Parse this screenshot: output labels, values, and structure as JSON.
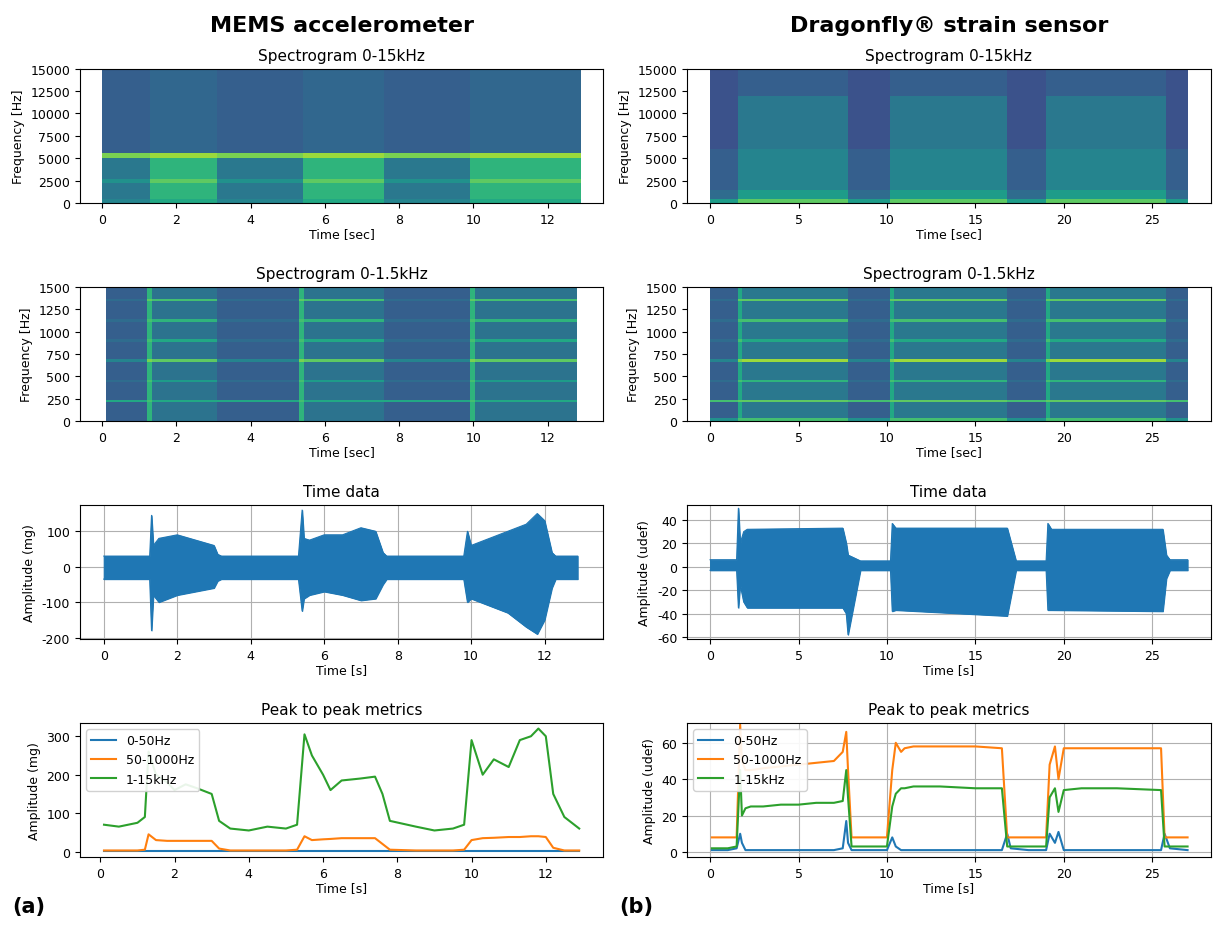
{
  "headers": [
    "MEMS accelerometer",
    "Dragonfly® strain sensor"
  ],
  "panel_labels": [
    "(a)",
    "(b)"
  ],
  "chart_data": [
    {
      "type": "heatmap",
      "title": "Spectrogram 0-15kHz",
      "x_label": "Time [sec]",
      "y_label": "Frequency [Hz]",
      "x_edges": [
        0,
        1.3,
        3.1,
        5.4,
        7.6,
        9.9,
        12.9
      ],
      "y_edges": [
        0,
        500,
        2300,
        2700,
        5000,
        5600,
        15000
      ],
      "cells": [
        [
          0.45,
          0.6,
          0.45,
          0.6,
          0.45,
          0.6
        ],
        [
          0.4,
          0.65,
          0.4,
          0.65,
          0.4,
          0.65
        ],
        [
          0.5,
          0.75,
          0.5,
          0.75,
          0.5,
          0.75
        ],
        [
          0.4,
          0.65,
          0.4,
          0.65,
          0.4,
          0.65
        ],
        [
          0.8,
          0.85,
          0.8,
          0.85,
          0.8,
          0.85
        ],
        [
          0.3,
          0.33,
          0.3,
          0.33,
          0.3,
          0.33
        ]
      ],
      "cell_range": [
        0,
        1
      ],
      "xlim": [
        -0.6,
        13.5
      ],
      "ylim": [
        0,
        15000
      ],
      "xticks": [
        0,
        2,
        4,
        6,
        8,
        10,
        12
      ],
      "yticks": [
        0,
        2500,
        5000,
        7500,
        10000,
        12500,
        15000
      ]
    },
    {
      "type": "heatmap",
      "title": "Spectrogram 0-15kHz",
      "x_label": "Time [sec]",
      "y_label": "Frequency [Hz]",
      "x_edges": [
        0,
        1.6,
        7.8,
        10.2,
        16.8,
        19.0,
        25.8,
        27.0
      ],
      "y_edges": [
        0,
        500,
        1500,
        6000,
        12000,
        15000
      ],
      "cells": [
        [
          0.55,
          0.75,
          0.55,
          0.75,
          0.55,
          0.75,
          0.55
        ],
        [
          0.35,
          0.55,
          0.35,
          0.55,
          0.35,
          0.55,
          0.35
        ],
        [
          0.3,
          0.45,
          0.3,
          0.45,
          0.3,
          0.45,
          0.3
        ],
        [
          0.25,
          0.4,
          0.25,
          0.4,
          0.25,
          0.4,
          0.25
        ],
        [
          0.25,
          0.3,
          0.25,
          0.3,
          0.25,
          0.3,
          0.25
        ]
      ],
      "cell_range": [
        0,
        1
      ],
      "xlim": [
        -1.3,
        28.3
      ],
      "ylim": [
        0,
        15000
      ],
      "xticks": [
        0,
        5,
        10,
        15,
        20,
        25
      ],
      "yticks": [
        0,
        2500,
        5000,
        7500,
        10000,
        12500,
        15000
      ]
    },
    {
      "type": "heatmap",
      "title": "Spectrogram 0-1.5kHz",
      "x_label": "Time [sec]",
      "y_label": "Frequency [Hz]",
      "x_edges": [
        0.1,
        1.2,
        1.35,
        3.1,
        5.3,
        5.45,
        7.6,
        9.9,
        10.05,
        12.8
      ],
      "y_edges": [
        0,
        210,
        240,
        435,
        465,
        660,
        690,
        885,
        915,
        1110,
        1140,
        1335,
        1365,
        1500
      ],
      "cells": [
        [
          0.3,
          0.65,
          0.38,
          0.3,
          0.65,
          0.38,
          0.3,
          0.65,
          0.38
        ],
        [
          0.6,
          0.7,
          0.6,
          0.6,
          0.7,
          0.6,
          0.6,
          0.7,
          0.6
        ],
        [
          0.3,
          0.65,
          0.38,
          0.3,
          0.65,
          0.38,
          0.3,
          0.65,
          0.38
        ],
        [
          0.35,
          0.7,
          0.55,
          0.35,
          0.7,
          0.55,
          0.35,
          0.7,
          0.55
        ],
        [
          0.3,
          0.65,
          0.38,
          0.3,
          0.65,
          0.38,
          0.3,
          0.65,
          0.38
        ],
        [
          0.45,
          0.8,
          0.75,
          0.45,
          0.8,
          0.75,
          0.45,
          0.8,
          0.75
        ],
        [
          0.3,
          0.65,
          0.38,
          0.3,
          0.65,
          0.38,
          0.3,
          0.65,
          0.38
        ],
        [
          0.35,
          0.7,
          0.6,
          0.35,
          0.7,
          0.6,
          0.35,
          0.7,
          0.6
        ],
        [
          0.3,
          0.65,
          0.38,
          0.3,
          0.65,
          0.38,
          0.3,
          0.65,
          0.38
        ],
        [
          0.35,
          0.7,
          0.65,
          0.35,
          0.7,
          0.65,
          0.35,
          0.7,
          0.65
        ],
        [
          0.3,
          0.65,
          0.38,
          0.3,
          0.65,
          0.38,
          0.3,
          0.65,
          0.38
        ],
        [
          0.35,
          0.75,
          0.7,
          0.35,
          0.75,
          0.7,
          0.35,
          0.75,
          0.7
        ],
        [
          0.3,
          0.65,
          0.38,
          0.3,
          0.65,
          0.38,
          0.3,
          0.65,
          0.38
        ]
      ],
      "cell_range": [
        0,
        1
      ],
      "xlim": [
        -0.6,
        13.5
      ],
      "ylim": [
        0,
        1500
      ],
      "xticks": [
        0,
        2,
        4,
        6,
        8,
        10,
        12
      ],
      "yticks": [
        0,
        250,
        500,
        750,
        1000,
        1250,
        1500
      ]
    },
    {
      "type": "heatmap",
      "title": "Spectrogram 0-1.5kHz",
      "x_label": "Time [sec]",
      "y_label": "Frequency [Hz]",
      "x_edges": [
        0,
        1.6,
        1.8,
        7.8,
        10.2,
        10.4,
        16.8,
        19.0,
        19.2,
        25.8,
        27.0
      ],
      "y_edges": [
        0,
        40,
        210,
        240,
        435,
        465,
        660,
        690,
        885,
        915,
        1110,
        1140,
        1335,
        1365,
        1500
      ],
      "cells": [
        [
          0.5,
          0.7,
          0.7,
          0.5,
          0.7,
          0.7,
          0.5,
          0.7,
          0.7,
          0.5
        ],
        [
          0.3,
          0.6,
          0.4,
          0.3,
          0.6,
          0.4,
          0.3,
          0.6,
          0.4,
          0.3
        ],
        [
          0.7,
          0.75,
          0.75,
          0.7,
          0.75,
          0.75,
          0.7,
          0.75,
          0.75,
          0.7
        ],
        [
          0.3,
          0.6,
          0.4,
          0.3,
          0.6,
          0.4,
          0.3,
          0.6,
          0.4,
          0.3
        ],
        [
          0.35,
          0.7,
          0.65,
          0.35,
          0.7,
          0.65,
          0.35,
          0.7,
          0.65,
          0.35
        ],
        [
          0.3,
          0.6,
          0.4,
          0.3,
          0.6,
          0.4,
          0.3,
          0.6,
          0.4,
          0.3
        ],
        [
          0.45,
          0.8,
          0.85,
          0.45,
          0.8,
          0.85,
          0.45,
          0.8,
          0.85,
          0.45
        ],
        [
          0.3,
          0.6,
          0.4,
          0.3,
          0.6,
          0.4,
          0.3,
          0.6,
          0.4,
          0.3
        ],
        [
          0.35,
          0.7,
          0.6,
          0.35,
          0.7,
          0.6,
          0.35,
          0.7,
          0.6,
          0.35
        ],
        [
          0.3,
          0.6,
          0.4,
          0.3,
          0.6,
          0.4,
          0.3,
          0.6,
          0.4,
          0.3
        ],
        [
          0.35,
          0.7,
          0.7,
          0.35,
          0.7,
          0.7,
          0.35,
          0.7,
          0.7,
          0.35
        ],
        [
          0.3,
          0.6,
          0.4,
          0.3,
          0.6,
          0.4,
          0.3,
          0.6,
          0.4,
          0.3
        ],
        [
          0.35,
          0.75,
          0.75,
          0.35,
          0.75,
          0.75,
          0.35,
          0.75,
          0.75,
          0.35
        ],
        [
          0.3,
          0.6,
          0.4,
          0.3,
          0.6,
          0.4,
          0.3,
          0.6,
          0.4,
          0.3
        ]
      ],
      "cell_range": [
        0,
        1
      ],
      "xlim": [
        -1.3,
        28.3
      ],
      "ylim": [
        0,
        1500
      ],
      "xticks": [
        0,
        5,
        10,
        15,
        20,
        25
      ],
      "yticks": [
        0,
        250,
        500,
        750,
        1000,
        1250,
        1500
      ]
    },
    {
      "type": "area",
      "title": "Time data",
      "x_label": "Time [s]",
      "y_label": "Amplitude (mg)",
      "color": "#1f77b4",
      "grid": true,
      "x": [
        0,
        1.25,
        1.3,
        1.35,
        1.5,
        2.0,
        2.5,
        3.0,
        3.1,
        3.2,
        5.3,
        5.4,
        5.45,
        5.6,
        6.0,
        6.5,
        7.0,
        7.4,
        7.6,
        7.7,
        9.8,
        9.9,
        10.0,
        10.5,
        11.0,
        11.5,
        11.8,
        12.0,
        12.2,
        12.3,
        12.9
      ],
      "upper": [
        30,
        30,
        145,
        60,
        80,
        90,
        75,
        60,
        35,
        30,
        30,
        160,
        80,
        75,
        90,
        90,
        110,
        100,
        40,
        30,
        30,
        100,
        60,
        80,
        100,
        120,
        150,
        130,
        40,
        30,
        30
      ],
      "lower": [
        -35,
        -35,
        -180,
        -80,
        -100,
        -80,
        -70,
        -60,
        -40,
        -35,
        -35,
        -125,
        -90,
        -80,
        -70,
        -80,
        -95,
        -90,
        -50,
        -35,
        -35,
        -100,
        -90,
        -110,
        -130,
        -170,
        -190,
        -150,
        -60,
        -35,
        -35
      ],
      "xlim": [
        -0.65,
        13.6
      ],
      "ylim": [
        -205,
        175
      ],
      "xticks": [
        0,
        2,
        4,
        6,
        8,
        10,
        12
      ],
      "yticks": [
        -200,
        -100,
        0,
        100
      ]
    },
    {
      "type": "area",
      "title": "Time data",
      "x_label": "Time [s]",
      "y_label": "Amplitude (udef)",
      "color": "#1f77b4",
      "grid": true,
      "x": [
        0,
        1.5,
        1.6,
        1.7,
        1.9,
        2.1,
        7.5,
        7.7,
        7.8,
        8.5,
        10.2,
        10.3,
        10.5,
        16.8,
        17.3,
        19.0,
        19.1,
        19.3,
        25.6,
        25.8,
        26.0,
        27.0
      ],
      "upper": [
        6,
        6,
        50,
        20,
        30,
        32,
        33,
        20,
        10,
        5,
        5,
        37,
        33,
        33,
        5,
        5,
        37,
        32,
        32,
        10,
        6,
        6
      ],
      "lower": [
        -3,
        -3,
        -35,
        -15,
        -30,
        -35,
        -35,
        -40,
        -58,
        -3,
        -3,
        -38,
        -37,
        -42,
        -3,
        -3,
        -37,
        -37,
        -38,
        -10,
        -3,
        -3
      ],
      "xlim": [
        -1.3,
        28.3
      ],
      "ylim": [
        -62,
        53
      ],
      "xticks": [
        0,
        5,
        10,
        15,
        20,
        25
      ],
      "yticks": [
        -60,
        -40,
        -20,
        0,
        20,
        40
      ]
    },
    {
      "type": "line",
      "title": "Peak to peak metrics",
      "x_label": "Time [s]",
      "y_label": "Amplitude (mg)",
      "grid": false,
      "legend": "upper left",
      "x": [
        0.1,
        0.5,
        1.0,
        1.2,
        1.3,
        1.5,
        1.8,
        2.0,
        2.3,
        2.6,
        3.0,
        3.2,
        3.5,
        4.0,
        4.5,
        5.0,
        5.3,
        5.5,
        5.7,
        6.0,
        6.2,
        6.5,
        7.0,
        7.4,
        7.6,
        7.8,
        8.5,
        9.0,
        9.5,
        9.8,
        10.0,
        10.3,
        10.6,
        11.0,
        11.3,
        11.6,
        11.8,
        12.0,
        12.2,
        12.5,
        12.9
      ],
      "series": [
        {
          "name": "0-50Hz",
          "color": "#1f77b4",
          "values": [
            1,
            1,
            1,
            1,
            1,
            1,
            1,
            1,
            1,
            1,
            1,
            1,
            1,
            1,
            1,
            1,
            1,
            1,
            1,
            1,
            1,
            1,
            1,
            1,
            1,
            1,
            1,
            1,
            1,
            1,
            1,
            1,
            1,
            1,
            1,
            1,
            1,
            1,
            1,
            1,
            1
          ]
        },
        {
          "name": "50-1000Hz",
          "color": "#ff7f0e",
          "values": [
            3,
            3,
            3,
            5,
            45,
            30,
            28,
            28,
            28,
            28,
            28,
            8,
            3,
            3,
            3,
            3,
            5,
            40,
            30,
            32,
            33,
            35,
            35,
            35,
            20,
            5,
            3,
            3,
            3,
            5,
            30,
            35,
            36,
            38,
            38,
            40,
            40,
            38,
            10,
            3,
            3
          ]
        },
        {
          "name": "1-15kHz",
          "color": "#2ca02c",
          "values": [
            70,
            65,
            75,
            90,
            260,
            200,
            180,
            160,
            175,
            165,
            150,
            80,
            60,
            55,
            65,
            60,
            70,
            305,
            250,
            200,
            160,
            185,
            190,
            195,
            150,
            80,
            65,
            55,
            60,
            70,
            290,
            200,
            240,
            220,
            290,
            300,
            320,
            300,
            150,
            90,
            60
          ]
        }
      ],
      "xlim": [
        -0.55,
        13.55
      ],
      "ylim": [
        -15,
        335
      ],
      "xticks": [
        0,
        2,
        4,
        6,
        8,
        10,
        12
      ],
      "yticks": [
        0,
        100,
        200,
        300
      ]
    },
    {
      "type": "line",
      "title": "Peak to peak metrics",
      "x_label": "Time [s]",
      "y_label": "Amplitude (udef)",
      "grid": true,
      "legend": "upper left",
      "x": [
        0.1,
        0.5,
        1.0,
        1.5,
        1.7,
        1.8,
        2.0,
        2.3,
        3.0,
        4.0,
        5.0,
        6.0,
        7.0,
        7.5,
        7.7,
        7.8,
        8.0,
        9.0,
        10.0,
        10.3,
        10.5,
        10.8,
        11.0,
        11.5,
        13.0,
        15.0,
        16.5,
        16.8,
        17.0,
        18.0,
        19.0,
        19.2,
        19.5,
        19.7,
        20.0,
        21.0,
        23.0,
        25.5,
        25.7,
        26.0,
        27.0
      ],
      "series": [
        {
          "name": "0-50Hz",
          "color": "#1f77b4",
          "values": [
            1,
            1,
            1,
            2,
            10,
            5,
            1,
            1,
            1,
            1,
            1,
            1,
            1,
            2,
            17,
            5,
            1,
            1,
            1,
            8,
            3,
            1,
            1,
            1,
            1,
            1,
            1,
            10,
            2,
            1,
            1,
            10,
            5,
            11,
            1,
            1,
            1,
            1,
            10,
            2,
            1
          ]
        },
        {
          "name": "50-1000Hz",
          "color": "#ff7f0e",
          "values": [
            8,
            8,
            8,
            8,
            70,
            50,
            45,
            45,
            46,
            47,
            48,
            49,
            50,
            55,
            66,
            45,
            8,
            8,
            8,
            45,
            60,
            55,
            57,
            58,
            58,
            58,
            57,
            8,
            8,
            8,
            8,
            48,
            58,
            40,
            57,
            57,
            57,
            57,
            8,
            8,
            8
          ]
        },
        {
          "name": "1-15kHz",
          "color": "#2ca02c",
          "values": [
            2,
            2,
            2,
            3,
            45,
            20,
            24,
            25,
            25,
            26,
            26,
            27,
            27,
            28,
            45,
            30,
            3,
            3,
            3,
            25,
            32,
            35,
            35,
            36,
            36,
            35,
            35,
            3,
            3,
            3,
            3,
            30,
            35,
            22,
            34,
            35,
            35,
            34,
            3,
            3,
            3
          ]
        }
      ],
      "xlim": [
        -1.3,
        28.3
      ],
      "ylim": [
        -3,
        71
      ],
      "xticks": [
        0,
        5,
        10,
        15,
        20,
        25
      ],
      "yticks": [
        0,
        20,
        40,
        60
      ]
    }
  ]
}
